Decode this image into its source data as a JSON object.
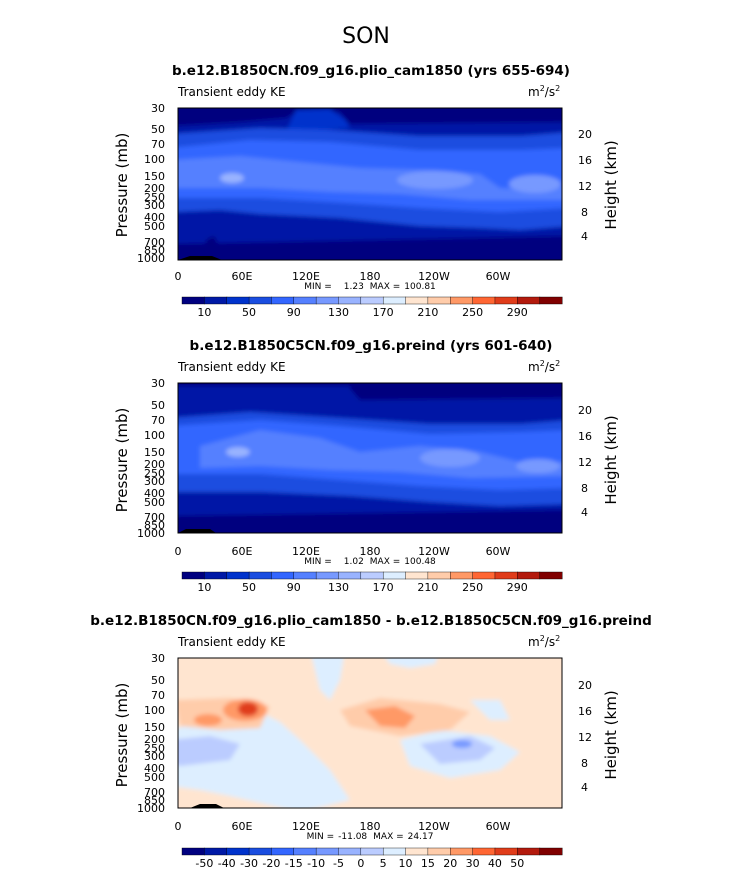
{
  "figure": {
    "season": "SON"
  },
  "chart_data": [
    {
      "type": "heatmap",
      "title": "b.e12.B1850CN.f09_g16.plio_cam1850 (yrs 655-694)",
      "left_label": "Transient eddy KE",
      "units": {
        "base": "m",
        "sup1": "2",
        "mid": "/s",
        "sup2": "2"
      },
      "xlabel": "",
      "ylabel": "Pressure (mb)",
      "y2label": "Height (km)",
      "x_ticks": [
        "0",
        "60E",
        "120E",
        "180",
        "120W",
        "60W"
      ],
      "y_ticks": [
        "30",
        "50",
        "70",
        "100",
        "150",
        "200",
        "250",
        "300",
        "400",
        "500",
        "700",
        "850",
        "1000"
      ],
      "y2_ticks": [
        "20",
        "16",
        "12",
        "8",
        "4"
      ],
      "stats": {
        "min_label": "MIN =",
        "min": "1.23",
        "max_label": "MAX =",
        "max": "100.81"
      },
      "colorbar": {
        "labels": [
          "10",
          "50",
          "90",
          "130",
          "170",
          "210",
          "250",
          "290"
        ],
        "colors": [
          "#00007f",
          "#0019a6",
          "#0033cc",
          "#1a4de0",
          "#3366ff",
          "#5580ff",
          "#7799ff",
          "#99b3ff",
          "#bbccff",
          "#ddeeff",
          "#ffe5d0",
          "#ffccaa",
          "#ff9966",
          "#ff6633",
          "#e03c1a",
          "#b31a0d",
          "#800000"
        ]
      }
    },
    {
      "type": "heatmap",
      "title": "b.e12.B1850C5CN.f09_g16.preind (yrs 601-640)",
      "left_label": "Transient eddy KE",
      "units": {
        "base": "m",
        "sup1": "2",
        "mid": "/s",
        "sup2": "2"
      },
      "xlabel": "",
      "ylabel": "Pressure (mb)",
      "y2label": "Height (km)",
      "x_ticks": [
        "0",
        "60E",
        "120E",
        "180",
        "120W",
        "60W"
      ],
      "y_ticks": [
        "30",
        "50",
        "70",
        "100",
        "150",
        "200",
        "250",
        "300",
        "400",
        "500",
        "700",
        "850",
        "1000"
      ],
      "y2_ticks": [
        "20",
        "16",
        "12",
        "8",
        "4"
      ],
      "stats": {
        "min_label": "MIN =",
        "min": "1.02",
        "max_label": "MAX =",
        "max": "100.48"
      },
      "colorbar": {
        "labels": [
          "10",
          "50",
          "90",
          "130",
          "170",
          "210",
          "250",
          "290"
        ],
        "colors": [
          "#00007f",
          "#0019a6",
          "#0033cc",
          "#1a4de0",
          "#3366ff",
          "#5580ff",
          "#7799ff",
          "#99b3ff",
          "#bbccff",
          "#ddeeff",
          "#ffe5d0",
          "#ffccaa",
          "#ff9966",
          "#ff6633",
          "#e03c1a",
          "#b31a0d",
          "#800000"
        ]
      }
    },
    {
      "type": "heatmap",
      "title": "b.e12.B1850CN.f09_g16.plio_cam1850 - b.e12.B1850C5CN.f09_g16.preind",
      "left_label": "Transient eddy KE",
      "units": {
        "base": "m",
        "sup1": "2",
        "mid": "/s",
        "sup2": "2"
      },
      "xlabel": "",
      "ylabel": "Pressure (mb)",
      "y2label": "Height (km)",
      "x_ticks": [
        "0",
        "60E",
        "120E",
        "180",
        "120W",
        "60W"
      ],
      "y_ticks": [
        "30",
        "50",
        "70",
        "100",
        "150",
        "200",
        "250",
        "300",
        "400",
        "500",
        "700",
        "850",
        "1000"
      ],
      "y2_ticks": [
        "20",
        "16",
        "12",
        "8",
        "4"
      ],
      "stats": {
        "min_label": "MIN =",
        "min": "-11.08",
        "max_label": "MAX =",
        "max": "24.17"
      },
      "colorbar": {
        "labels": [
          "-50",
          "-40",
          "-30",
          "-20",
          "-15",
          "-10",
          "-5",
          "0",
          "5",
          "10",
          "15",
          "20",
          "30",
          "40",
          "50"
        ],
        "colors": [
          "#00007f",
          "#0019a6",
          "#0033cc",
          "#1a4de0",
          "#3366ff",
          "#5580ff",
          "#7799ff",
          "#99b3ff",
          "#bbccff",
          "#ddeeff",
          "#ffe5d0",
          "#ffccaa",
          "#ff9966",
          "#ff6633",
          "#e03c1a",
          "#b31a0d",
          "#800000"
        ]
      }
    }
  ]
}
